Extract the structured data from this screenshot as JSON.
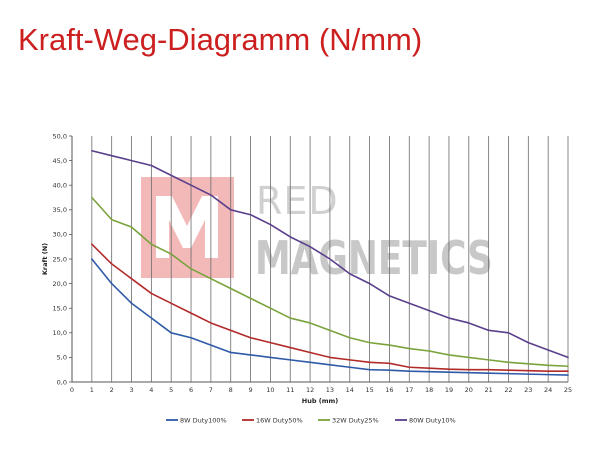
{
  "page": {
    "title": "Kraft-Weg-Diagramm (N/mm)"
  },
  "watermark": {
    "line1": "RED",
    "line2": "MAGNETICS",
    "box_color": "#f3b9b9",
    "text_color": "#d0d0d0"
  },
  "chart_data": {
    "type": "line",
    "title": "",
    "xlabel": "Hub (mm)",
    "ylabel": "Kraft (N)",
    "xlim": [
      0,
      25
    ],
    "ylim": [
      0,
      50
    ],
    "xticks": [
      0,
      1,
      2,
      3,
      4,
      5,
      6,
      7,
      8,
      9,
      10,
      11,
      12,
      13,
      14,
      15,
      16,
      17,
      18,
      19,
      20,
      21,
      22,
      23,
      24,
      25
    ],
    "yticks": [
      0,
      5,
      10,
      15,
      20,
      25,
      30,
      35,
      40,
      45,
      50
    ],
    "ytick_labels": [
      "0,0",
      "5,0",
      "10,0",
      "15,0",
      "20,0",
      "25,0",
      "30,0",
      "35,0",
      "40,0",
      "45,0",
      "50,0"
    ],
    "grid": "vertical",
    "legend_position": "bottom",
    "x": [
      1,
      2,
      3,
      4,
      5,
      6,
      7,
      8,
      9,
      10,
      11,
      12,
      13,
      14,
      15,
      16,
      17,
      18,
      19,
      20,
      21,
      22,
      23,
      24,
      25
    ],
    "series": [
      {
        "name": "8W Duty100%",
        "color": "#2e5aa8",
        "values": [
          25,
          20,
          16,
          13,
          10,
          9,
          7.5,
          6,
          5.5,
          5,
          4.5,
          4,
          3.5,
          3,
          2.5,
          2.4,
          2.2,
          2.1,
          2,
          1.9,
          1.8,
          1.7,
          1.6,
          1.5,
          1.4
        ]
      },
      {
        "name": "16W Duty50%",
        "color": "#b22a2a",
        "values": [
          28,
          24,
          21,
          18,
          16,
          14,
          12,
          10.5,
          9,
          8,
          7,
          6,
          5,
          4.5,
          4,
          3.8,
          3,
          2.8,
          2.6,
          2.5,
          2.5,
          2.4,
          2.3,
          2.2,
          2.2
        ]
      },
      {
        "name": "32W Duty25%",
        "color": "#7aa33c",
        "values": [
          37.5,
          33,
          31.5,
          28,
          26,
          23,
          21,
          19,
          17,
          15,
          13,
          12,
          10.5,
          9,
          8,
          7.5,
          6.8,
          6.3,
          5.5,
          5,
          4.5,
          4,
          3.7,
          3.4,
          3.2
        ]
      },
      {
        "name": "80W Duty10%",
        "color": "#5a3f8c",
        "values": [
          47,
          46,
          45,
          44,
          42,
          40,
          38,
          35,
          34,
          32,
          29.5,
          27.5,
          25,
          22,
          20,
          17.5,
          16,
          14.5,
          13,
          12,
          10.5,
          10,
          8,
          6.5,
          5
        ]
      }
    ]
  }
}
